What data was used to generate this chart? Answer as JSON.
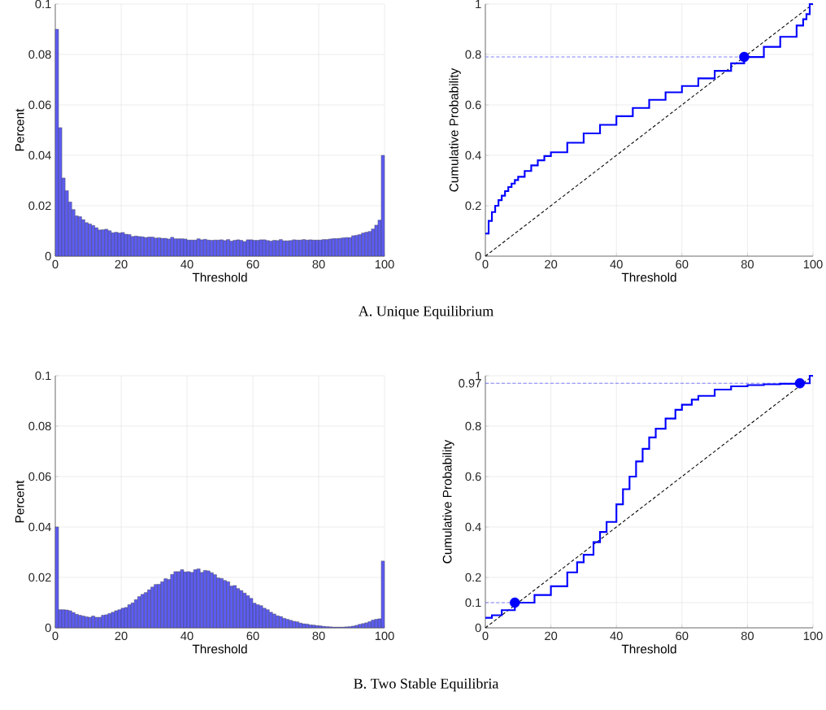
{
  "chart_data": [
    {
      "type": "histogram",
      "xlabel": "Threshold",
      "ylabel": "Percent",
      "annotations": [
        "A. Unique Equilibrium"
      ],
      "xlim": [
        0,
        100
      ],
      "ylim": [
        0,
        0.1
      ],
      "xticks": [
        0,
        20,
        40,
        60,
        80,
        100
      ],
      "yticks": [
        0,
        0.02,
        0.04,
        0.06,
        0.08,
        0.1
      ],
      "grid": true,
      "color": "#5c5cf2",
      "bins": [
        0,
        1,
        2,
        3,
        4,
        5,
        6,
        7,
        8,
        9,
        10,
        11,
        12,
        13,
        14,
        15,
        16,
        17,
        18,
        19,
        20,
        21,
        22,
        23,
        24,
        25,
        26,
        27,
        28,
        29,
        30,
        31,
        32,
        33,
        34,
        35,
        36,
        37,
        38,
        39,
        40,
        41,
        42,
        43,
        44,
        45,
        46,
        47,
        48,
        49,
        50,
        51,
        52,
        53,
        54,
        55,
        56,
        57,
        58,
        59,
        60,
        61,
        62,
        63,
        64,
        65,
        66,
        67,
        68,
        69,
        70,
        71,
        72,
        73,
        74,
        75,
        76,
        77,
        78,
        79,
        80,
        81,
        82,
        83,
        84,
        85,
        86,
        87,
        88,
        89,
        90,
        91,
        92,
        93,
        94,
        95,
        96,
        97,
        98,
        99,
        100
      ],
      "values": [
        0.09,
        0.051,
        0.031,
        0.026,
        0.0215,
        0.0185,
        0.016,
        0.0157,
        0.0145,
        0.0133,
        0.0128,
        0.0122,
        0.0113,
        0.0104,
        0.0105,
        0.0107,
        0.0101,
        0.0093,
        0.0095,
        0.0092,
        0.0094,
        0.0087,
        0.0086,
        0.0078,
        0.008,
        0.0078,
        0.0077,
        0.0074,
        0.0076,
        0.0076,
        0.0072,
        0.0073,
        0.0071,
        0.0071,
        0.0068,
        0.0075,
        0.0069,
        0.0069,
        0.0069,
        0.0068,
        0.0064,
        0.0064,
        0.0064,
        0.0069,
        0.0065,
        0.0067,
        0.0064,
        0.0063,
        0.0064,
        0.0064,
        0.0065,
        0.0062,
        0.0066,
        0.006,
        0.0063,
        0.0065,
        0.0063,
        0.0058,
        0.0065,
        0.0065,
        0.0063,
        0.0063,
        0.0065,
        0.0065,
        0.0062,
        0.006,
        0.0063,
        0.0062,
        0.0066,
        0.0061,
        0.0061,
        0.0062,
        0.0065,
        0.0064,
        0.0064,
        0.0066,
        0.0064,
        0.0065,
        0.0064,
        0.0064,
        0.0064,
        0.0066,
        0.0066,
        0.0068,
        0.007,
        0.007,
        0.0071,
        0.0073,
        0.0074,
        0.0074,
        0.0081,
        0.0083,
        0.0086,
        0.0092,
        0.0095,
        0.0098,
        0.0108,
        0.0123,
        0.0143,
        0.04
      ]
    },
    {
      "type": "step",
      "xlabel": "Threshold",
      "ylabel": "Cumulative Probability",
      "xlim": [
        0,
        100
      ],
      "ylim": [
        0,
        1
      ],
      "xticks": [
        0,
        20,
        40,
        60,
        80,
        100
      ],
      "yticks": [
        0,
        0.2,
        0.4,
        0.6,
        0.8,
        1
      ],
      "grid": true,
      "series": [
        {
          "type": "line",
          "color": "#000000",
          "line_style": "dashed",
          "x": [
            0,
            100
          ],
          "values": [
            0,
            1
          ]
        },
        {
          "type": "line",
          "color": "#8080ff",
          "line_style": "dashed",
          "x": [
            0,
            79
          ],
          "values": [
            0.79,
            0.79
          ]
        },
        {
          "type": "step",
          "color": "#0000ff",
          "x": [
            0,
            1,
            2,
            3,
            4,
            5,
            6,
            7,
            8,
            9,
            10,
            12,
            14,
            16,
            18,
            20,
            25,
            30,
            35,
            40,
            45,
            50,
            55,
            60,
            65,
            70,
            75,
            79,
            85,
            90,
            95,
            97,
            98,
            99,
            100
          ],
          "values": [
            0.09,
            0.14,
            0.175,
            0.2,
            0.222,
            0.24,
            0.258,
            0.274,
            0.288,
            0.302,
            0.315,
            0.338,
            0.36,
            0.38,
            0.397,
            0.412,
            0.45,
            0.487,
            0.521,
            0.555,
            0.588,
            0.62,
            0.65,
            0.675,
            0.705,
            0.735,
            0.765,
            0.79,
            0.83,
            0.87,
            0.915,
            0.94,
            0.96,
            1.0,
            1.0
          ]
        },
        {
          "type": "scatter",
          "color": "#0000ff",
          "marker": "circle",
          "x": [
            79
          ],
          "values": [
            0.79
          ]
        }
      ]
    },
    {
      "type": "histogram",
      "xlabel": "Threshold",
      "ylabel": "Percent",
      "annotations": [
        "B. Two Stable Equilibria"
      ],
      "xlim": [
        0,
        100
      ],
      "ylim": [
        0,
        0.1
      ],
      "xticks": [
        0,
        20,
        40,
        60,
        80,
        100
      ],
      "yticks": [
        0,
        0.02,
        0.04,
        0.06,
        0.08,
        0.1
      ],
      "grid": true,
      "color": "#5c5cf2",
      "bins": [
        0,
        1,
        2,
        3,
        4,
        5,
        6,
        7,
        8,
        9,
        10,
        11,
        12,
        13,
        14,
        15,
        16,
        17,
        18,
        19,
        20,
        21,
        22,
        23,
        24,
        25,
        26,
        27,
        28,
        29,
        30,
        31,
        32,
        33,
        34,
        35,
        36,
        37,
        38,
        39,
        40,
        41,
        42,
        43,
        44,
        45,
        46,
        47,
        48,
        49,
        50,
        51,
        52,
        53,
        54,
        55,
        56,
        57,
        58,
        59,
        60,
        61,
        62,
        63,
        64,
        65,
        66,
        67,
        68,
        69,
        70,
        71,
        72,
        73,
        74,
        75,
        76,
        77,
        78,
        79,
        80,
        81,
        82,
        83,
        84,
        85,
        86,
        87,
        88,
        89,
        90,
        91,
        92,
        93,
        94,
        95,
        96,
        97,
        98,
        99,
        100
      ],
      "values": [
        0.04,
        0.0072,
        0.0072,
        0.0071,
        0.0068,
        0.0061,
        0.0054,
        0.005,
        0.0047,
        0.0044,
        0.0042,
        0.0047,
        0.0042,
        0.0042,
        0.005,
        0.0052,
        0.0057,
        0.0062,
        0.0068,
        0.0072,
        0.0078,
        0.0081,
        0.0092,
        0.0099,
        0.0112,
        0.0124,
        0.0133,
        0.014,
        0.0151,
        0.0162,
        0.0172,
        0.0173,
        0.0183,
        0.0195,
        0.0192,
        0.0212,
        0.0223,
        0.0223,
        0.0231,
        0.0222,
        0.0223,
        0.022,
        0.0231,
        0.0234,
        0.022,
        0.0228,
        0.0226,
        0.0219,
        0.0211,
        0.0198,
        0.0196,
        0.0188,
        0.0183,
        0.0166,
        0.0168,
        0.0156,
        0.0148,
        0.0138,
        0.0128,
        0.0117,
        0.0098,
        0.0092,
        0.0088,
        0.0078,
        0.0072,
        0.0062,
        0.0055,
        0.0048,
        0.0045,
        0.0038,
        0.0034,
        0.003,
        0.0026,
        0.0024,
        0.0019,
        0.0016,
        0.0015,
        0.0012,
        0.0011,
        0.0009,
        0.0008,
        0.0006,
        0.0005,
        0.0004,
        0.0003,
        0.0003,
        0.0003,
        0.0003,
        0.0004,
        0.0005,
        0.0007,
        0.001,
        0.0014,
        0.0017,
        0.002,
        0.0025,
        0.0031,
        0.0034,
        0.0036,
        0.0265
      ]
    },
    {
      "type": "step",
      "xlabel": "Threshold",
      "ylabel": "Cumulative Probability",
      "xlim": [
        0,
        100
      ],
      "ylim": [
        0,
        1
      ],
      "xticks": [
        0,
        20,
        40,
        60,
        80,
        100
      ],
      "yticks": [
        0,
        0.1,
        0.2,
        0.4,
        0.6,
        0.8,
        0.97,
        1
      ],
      "grid": true,
      "series": [
        {
          "type": "line",
          "color": "#000000",
          "line_style": "dashed",
          "x": [
            0,
            100
          ],
          "values": [
            0,
            1
          ]
        },
        {
          "type": "line",
          "color": "#8080ff",
          "line_style": "dashed",
          "x": [
            0,
            9
          ],
          "values": [
            0.1,
            0.1
          ]
        },
        {
          "type": "line",
          "color": "#8080ff",
          "line_style": "dashed",
          "x": [
            0,
            96
          ],
          "values": [
            0.97,
            0.97
          ]
        },
        {
          "type": "step",
          "color": "#0000ff",
          "x": [
            0,
            2,
            5,
            9,
            15,
            20,
            25,
            28,
            30,
            33,
            35,
            37,
            40,
            42,
            44,
            46,
            48,
            50,
            52,
            55,
            58,
            60,
            63,
            65,
            70,
            75,
            80,
            85,
            90,
            96,
            99,
            100
          ],
          "values": [
            0.04,
            0.05,
            0.07,
            0.1,
            0.13,
            0.165,
            0.22,
            0.26,
            0.29,
            0.34,
            0.38,
            0.42,
            0.49,
            0.55,
            0.6,
            0.66,
            0.71,
            0.755,
            0.79,
            0.83,
            0.865,
            0.885,
            0.905,
            0.92,
            0.945,
            0.958,
            0.963,
            0.966,
            0.968,
            0.97,
            1.0,
            1.0
          ]
        },
        {
          "type": "scatter",
          "color": "#0000ff",
          "marker": "circle",
          "x": [
            9,
            96
          ],
          "values": [
            0.1,
            0.97
          ]
        }
      ]
    }
  ]
}
